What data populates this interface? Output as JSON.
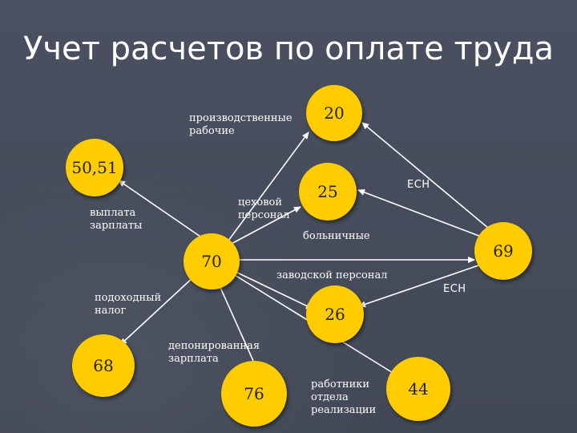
{
  "title": "Учет расчетов по оплате труда",
  "accounts": {
    "a20": "20",
    "a25": "25",
    "a50_51": "50,51",
    "a69": "69",
    "a70": "70",
    "a26": "26",
    "a68": "68",
    "a76": "76",
    "a44": "44"
  },
  "labels": {
    "production_workers": "производственные\nрабочие",
    "shop_staff": "цеховой\nперсонал",
    "salary_payment": "выплата\nзарплаты",
    "sick_pay": "больничные",
    "factory_staff": "заводской персонал",
    "income_tax": "подоходный\nналог",
    "deposited_salary": "депонированная\nзарплата",
    "sales_staff": "работники\nотдела\nреализации",
    "ech_1": "ЕСН",
    "ech_2": "ЕСН"
  },
  "colors": {
    "background": "#454b59",
    "node_fill": "#ffcc00",
    "text": "#ffffff",
    "arrow": "#ffffff"
  }
}
